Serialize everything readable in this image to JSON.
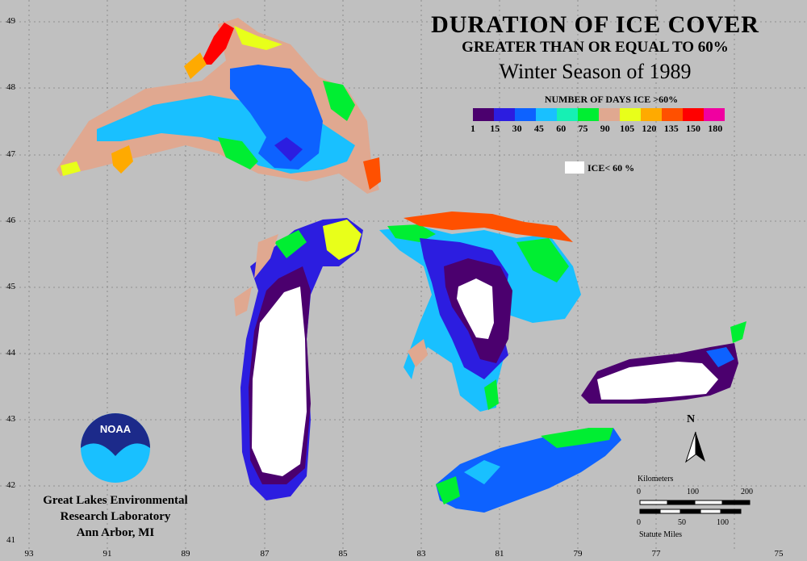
{
  "title": {
    "line1": "DURATION OF ICE COVER",
    "line2": "GREATER THAN OR EQUAL TO 60%",
    "line3": "Winter Season of 1989"
  },
  "legend": {
    "title": "NUMBER OF DAYS ICE >60%",
    "ticks": [
      "1",
      "15",
      "30",
      "45",
      "60",
      "75",
      "90",
      "105",
      "120",
      "135",
      "150",
      "180"
    ],
    "colors": [
      "#4b006e",
      "#2c1de0",
      "#0d62ff",
      "#19c0ff",
      "#16f0b4",
      "#00ee32",
      "#e0a890",
      "#e8ff1a",
      "#ffaa00",
      "#ff5000",
      "#ff0000",
      "#f000a0"
    ],
    "ice_below_label": "ICE< 60 %"
  },
  "grid": {
    "latitudes": [
      "49",
      "48",
      "47",
      "46",
      "45",
      "44",
      "43",
      "42",
      "41"
    ],
    "longitudes": [
      "93",
      "91",
      "89",
      "87",
      "85",
      "83",
      "81",
      "79",
      "77",
      "75"
    ]
  },
  "organization": {
    "logo_text": "NOAA",
    "line1": "Great Lakes Environmental",
    "line2": "Research Laboratory",
    "line3": "Ann Arbor, MI"
  },
  "scale": {
    "km_label": "Kilometers",
    "km_ticks": [
      "0",
      "100",
      "200"
    ],
    "mi_ticks": [
      "0",
      "50",
      "100"
    ],
    "mi_label": "Statute Miles"
  },
  "north_label": "N"
}
